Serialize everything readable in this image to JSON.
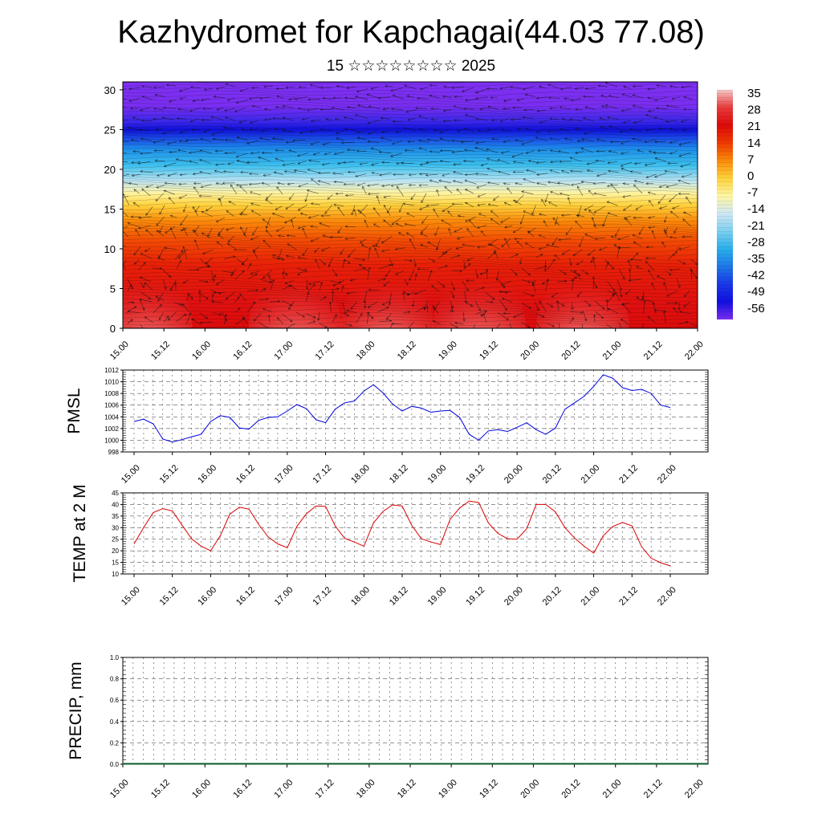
{
  "header": {
    "title": "Kazhydromet for Kapchagai(44.03 77.08)",
    "subtitle": "15 ☆☆☆☆☆☆☆☆ 2025"
  },
  "time_ticks": [
    "15.00",
    "15.12",
    "16.00",
    "16.12",
    "17.00",
    "17.12",
    "18.00",
    "18.12",
    "19.00",
    "19.12",
    "20.00",
    "20.12",
    "21.00",
    "21.12",
    "22.00"
  ],
  "chart_data": [
    {
      "type": "heatmap",
      "title": "",
      "x_ticks": [
        "15.00",
        "15.12",
        "16.00",
        "16.12",
        "17.00",
        "17.12",
        "18.00",
        "18.12",
        "19.00",
        "19.12",
        "20.00",
        "20.12",
        "21.00",
        "21.12",
        "22.00"
      ],
      "y_ticks": [
        0,
        5,
        10,
        15,
        20,
        25,
        30
      ],
      "ylim": [
        0,
        31
      ],
      "colorbar_labels": [
        "35",
        "28",
        "21",
        "14",
        "7",
        "0",
        "-7",
        "-14",
        "-21",
        "-28",
        "-35",
        "-42",
        "-49",
        "-56"
      ],
      "colorbar_stops": [
        {
          "value": 35,
          "color": "#f6c6c6"
        },
        {
          "value": 28,
          "color": "#e83a3a"
        },
        {
          "value": 21,
          "color": "#dd0b0b"
        },
        {
          "value": 14,
          "color": "#ef3a00"
        },
        {
          "value": 7,
          "color": "#fb8a0a"
        },
        {
          "value": 0,
          "color": "#ffd23c"
        },
        {
          "value": -7,
          "color": "#fff6a4"
        },
        {
          "value": -14,
          "color": "#cfe8f4"
        },
        {
          "value": -21,
          "color": "#7ed0f0"
        },
        {
          "value": -28,
          "color": "#2ab0ec"
        },
        {
          "value": -35,
          "color": "#1e78e8"
        },
        {
          "value": -42,
          "color": "#1a38e8"
        },
        {
          "value": -49,
          "color": "#1010e0"
        },
        {
          "value": -56,
          "color": "#7a2ef0"
        }
      ],
      "has_wind_vectors": true
    },
    {
      "type": "line",
      "ylabel": "PMSL",
      "ylim": [
        998,
        1012
      ],
      "y_ticks": [
        998,
        1000,
        1002,
        1004,
        1006,
        1008,
        1010,
        1012
      ],
      "x_ticks": [
        "15.00",
        "15.12",
        "16.00",
        "16.12",
        "17.00",
        "17.12",
        "18.00",
        "18.12",
        "19.00",
        "19.12",
        "20.00",
        "20.12",
        "21.00",
        "21.12",
        "22.00"
      ],
      "x_hours": [
        0,
        3,
        6,
        9,
        12,
        15,
        18,
        21,
        24,
        27,
        30,
        33,
        36,
        39,
        42,
        45,
        48,
        51,
        54,
        57,
        60,
        63,
        66,
        69,
        72,
        75,
        78,
        81,
        84,
        87,
        90,
        93,
        96,
        99,
        102,
        105,
        108,
        111,
        114,
        117,
        120,
        123,
        126,
        129,
        132,
        135,
        138,
        141,
        144,
        147,
        150,
        153,
        156,
        159,
        162,
        165,
        168
      ],
      "values": [
        1003.2,
        1003.6,
        1002.8,
        1000.2,
        999.7,
        1000.1,
        1000.6,
        1001.0,
        1003.2,
        1004.2,
        1003.9,
        1002.1,
        1001.9,
        1003.4,
        1003.9,
        1004.0,
        1005.0,
        1006.1,
        1005.4,
        1003.5,
        1003.0,
        1005.3,
        1006.4,
        1006.7,
        1008.4,
        1009.5,
        1008.1,
        1006.2,
        1005.0,
        1005.8,
        1005.5,
        1004.8,
        1005.0,
        1005.1,
        1003.9,
        1001.0,
        1000.0,
        1001.6,
        1001.8,
        1001.5,
        1002.2,
        1003.0,
        1001.8,
        1001.0,
        1002.1,
        1005.3,
        1006.4,
        1007.5,
        1009.2,
        1011.2,
        1010.6,
        1009.0,
        1008.5,
        1008.7,
        1008.0,
        1006.0,
        1005.6
      ],
      "color": "#0000dd"
    },
    {
      "type": "line",
      "ylabel": "TEMP at 2 M",
      "ylim": [
        10,
        45
      ],
      "y_ticks": [
        10,
        15,
        20,
        25,
        30,
        35,
        40,
        45
      ],
      "x_ticks": [
        "15.00",
        "15.12",
        "16.00",
        "16.12",
        "17.00",
        "17.12",
        "18.00",
        "18.12",
        "19.00",
        "19.12",
        "20.00",
        "20.12",
        "21.00",
        "21.12",
        "22.00"
      ],
      "x_hours": [
        0,
        3,
        6,
        9,
        12,
        15,
        18,
        21,
        24,
        27,
        30,
        33,
        36,
        39,
        42,
        45,
        48,
        51,
        54,
        57,
        60,
        63,
        66,
        69,
        72,
        75,
        78,
        81,
        84,
        87,
        90,
        93,
        96,
        99,
        102,
        105,
        108,
        111,
        114,
        117,
        120,
        123,
        126,
        129,
        132,
        135,
        138,
        141,
        144,
        147,
        150,
        153,
        156,
        159,
        162,
        165,
        168
      ],
      "values": [
        23,
        30,
        36.5,
        38.2,
        37.2,
        31.2,
        25.2,
        22.0,
        20.0,
        26.5,
        35.8,
        38.8,
        38.0,
        31.5,
        26.0,
        23.0,
        21.3,
        30.5,
        36.0,
        39.3,
        39.2,
        30.8,
        25.3,
        23.8,
        22.0,
        32.0,
        37.0,
        39.8,
        39.3,
        31.0,
        25.2,
        23.8,
        22.7,
        33.5,
        38.5,
        41.5,
        40.8,
        32.0,
        27.5,
        25.2,
        25.0,
        29.5,
        40.0,
        40.0,
        36.8,
        30.0,
        25.5,
        22.0,
        19.0,
        26.5,
        30.5,
        32.2,
        30.8,
        21.8,
        16.8,
        14.8,
        13.5
      ],
      "color": "#dd0000"
    },
    {
      "type": "bar",
      "ylabel": "PRECIP, mm",
      "ylim": [
        0,
        1
      ],
      "y_ticks": [
        "0.0",
        "0.2",
        "0.4",
        "0.6",
        "0.8",
        "1.0"
      ],
      "x_ticks": [
        "15.00",
        "15.12",
        "16.00",
        "16.12",
        "17.00",
        "17.12",
        "18.00",
        "18.12",
        "19.00",
        "19.12",
        "20.00",
        "20.12",
        "21.00",
        "21.12",
        "22.00"
      ],
      "values": [
        0,
        0,
        0,
        0,
        0,
        0,
        0,
        0,
        0,
        0,
        0,
        0,
        0,
        0,
        0,
        0,
        0,
        0,
        0,
        0,
        0,
        0,
        0,
        0,
        0,
        0,
        0,
        0,
        0,
        0,
        0,
        0,
        0,
        0,
        0,
        0,
        0,
        0,
        0,
        0,
        0,
        0,
        0,
        0,
        0,
        0,
        0,
        0,
        0,
        0,
        0,
        0,
        0,
        0,
        0,
        0,
        0
      ],
      "color": "#0a5a2a"
    }
  ]
}
